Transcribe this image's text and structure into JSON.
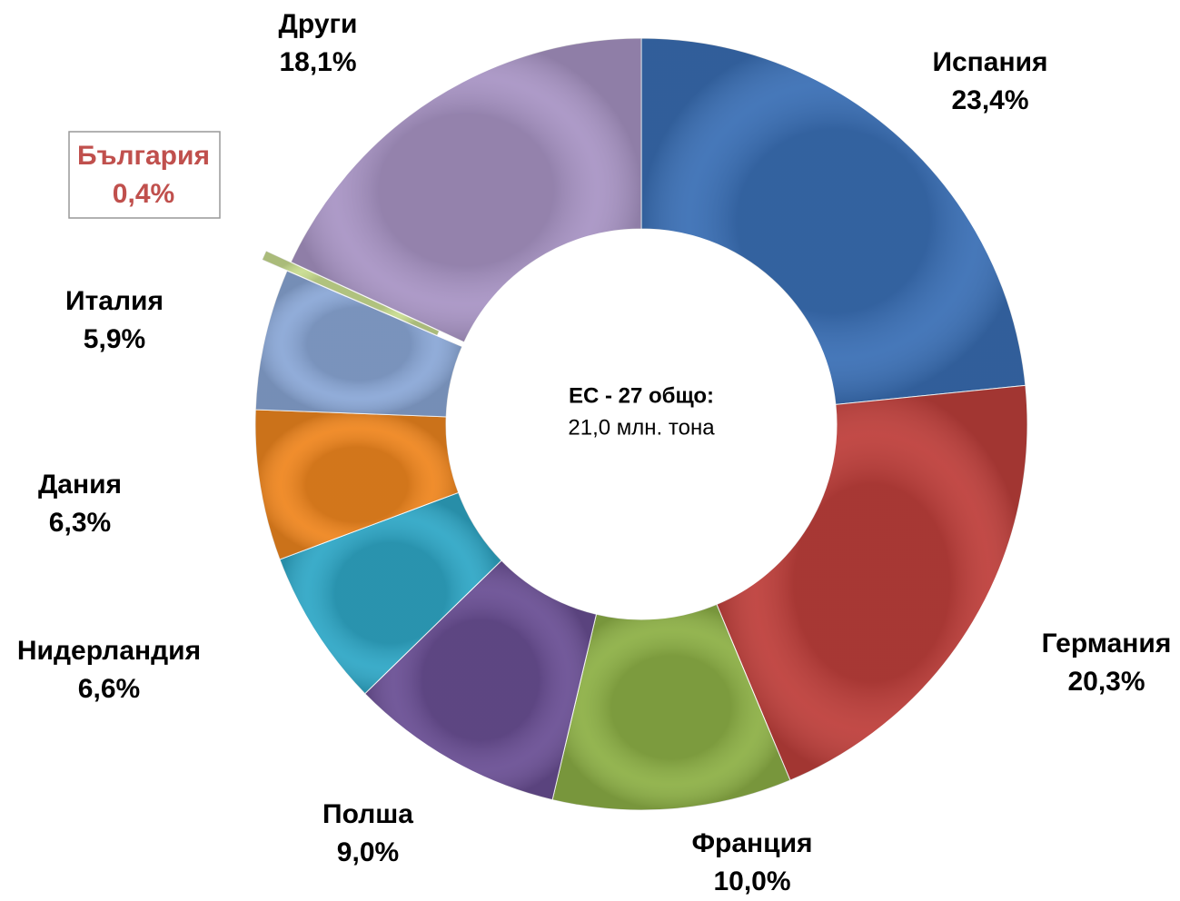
{
  "chart_data": {
    "type": "donut",
    "categories": [
      "Испания",
      "Германия",
      "Франция",
      "Полша",
      "Нидерландия",
      "Дания",
      "Италия",
      "България",
      "Други"
    ],
    "values": [
      23.4,
      20.3,
      10.0,
      9.0,
      6.6,
      6.3,
      5.9,
      0.4,
      18.1
    ],
    "value_labels": [
      "23,4%",
      "20,3%",
      "10,0%",
      "9,0%",
      "6,6%",
      "6,3%",
      "5,9%",
      "0,4%",
      "18,1%"
    ],
    "colors": [
      "#3a6fb5",
      "#be3f3b",
      "#8db046",
      "#6a4f94",
      "#2fa7c6",
      "#ef861f",
      "#8aa7d6",
      "#c8dc8f",
      "#a894c4"
    ],
    "annotations": [
      "ЕС - 27 общо:",
      "21,0 млн. тона"
    ]
  }
}
